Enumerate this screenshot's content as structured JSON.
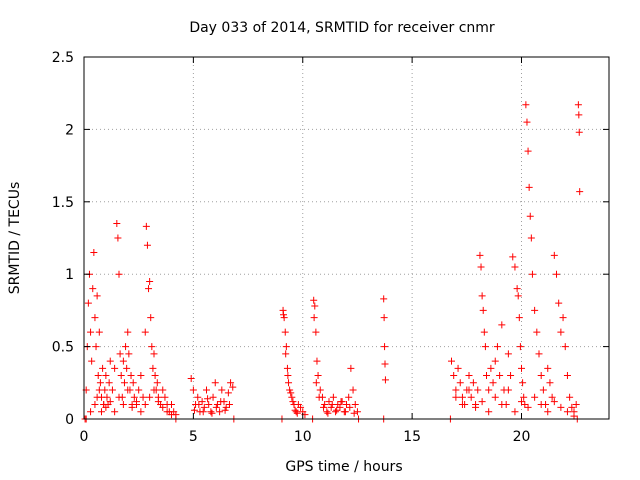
{
  "chart_data": {
    "type": "scatter",
    "title": "Day 033 of 2014, SRMTID for receiver cnmr",
    "xlabel": "GPS time / hours",
    "ylabel": "SRMTID / TECUs",
    "xlim": [
      0,
      24
    ],
    "ylim": [
      0,
      2.5
    ],
    "xticks": [
      0,
      5,
      10,
      15,
      20
    ],
    "yticks": [
      0,
      0.5,
      1,
      1.5,
      2,
      2.5
    ],
    "xtick_labels": [
      "0",
      "5",
      "10",
      "15",
      "20"
    ],
    "ytick_labels": [
      "0",
      "0.5",
      "1",
      "1.5",
      "2",
      "2.5"
    ],
    "grid": true,
    "marker": "+",
    "series": [
      {
        "name": "SRMTID",
        "color": "#ff0000",
        "x": [
          0.1,
          0.15,
          0.2,
          0.25,
          0.3,
          0.35,
          0.4,
          0.45,
          0.5,
          0.55,
          0.6,
          0.65,
          0.7,
          0.75,
          0.8,
          0.85,
          0.9,
          0.95,
          1.0,
          1.05,
          1.1,
          1.15,
          1.2,
          1.3,
          1.4,
          1.5,
          1.55,
          1.6,
          1.65,
          1.7,
          1.75,
          1.8,
          1.85,
          1.9,
          1.95,
          2.0,
          2.05,
          2.1,
          2.15,
          2.2,
          2.25,
          2.3,
          2.4,
          2.5,
          2.6,
          2.7,
          2.8,
          2.85,
          2.9,
          2.95,
          3.0,
          3.05,
          3.1,
          3.15,
          3.2,
          3.25,
          3.3,
          3.35,
          3.4,
          3.5,
          3.6,
          3.7,
          3.8,
          3.9,
          4.0,
          4.1,
          4.2,
          0.3,
          0.5,
          0.6,
          0.7,
          0.8,
          0.9,
          1.0,
          1.2,
          1.4,
          1.6,
          1.8,
          2.0,
          2.2,
          2.4,
          2.6,
          2.8,
          3.0,
          3.2,
          3.4,
          3.6,
          3.8,
          4.0,
          4.9,
          5.0,
          5.1,
          5.2,
          5.3,
          5.4,
          5.5,
          5.6,
          5.7,
          5.8,
          5.9,
          6.0,
          6.1,
          6.2,
          6.3,
          6.4,
          6.5,
          6.6,
          6.7,
          6.8,
          5.05,
          5.25,
          5.45,
          5.65,
          5.85,
          6.05,
          6.25,
          6.45,
          6.65,
          9.1,
          9.15,
          9.2,
          9.25,
          9.3,
          9.35,
          9.4,
          9.5,
          9.6,
          9.7,
          9.8,
          9.9,
          10.0,
          10.1,
          9.12,
          9.22,
          9.32,
          9.45,
          9.55,
          9.65,
          9.75,
          10.5,
          10.55,
          10.6,
          10.65,
          10.7,
          10.8,
          10.9,
          11.0,
          11.1,
          11.2,
          11.3,
          11.4,
          11.5,
          11.6,
          11.7,
          11.8,
          11.9,
          12.0,
          12.1,
          12.2,
          12.3,
          12.4,
          12.5,
          10.52,
          10.62,
          10.75,
          10.95,
          11.15,
          11.35,
          11.55,
          11.75,
          11.95,
          12.15,
          12.35,
          13.7,
          13.72,
          13.74,
          13.76,
          13.78,
          16.8,
          16.9,
          17.0,
          17.1,
          17.2,
          17.3,
          17.4,
          17.5,
          17.6,
          17.7,
          17.8,
          17.9,
          18.0,
          18.1,
          18.15,
          18.2,
          18.25,
          18.3,
          18.35,
          18.4,
          18.5,
          18.6,
          18.7,
          18.8,
          18.9,
          19.0,
          19.1,
          19.2,
          19.3,
          19.4,
          19.5,
          19.6,
          19.7,
          19.8,
          19.85,
          19.9,
          19.95,
          20.0,
          20.05,
          20.1,
          20.15,
          20.2,
          20.25,
          20.3,
          20.35,
          20.4,
          20.45,
          20.5,
          20.6,
          20.7,
          20.8,
          20.9,
          21.0,
          21.1,
          21.2,
          21.3,
          21.4,
          21.5,
          21.6,
          21.7,
          21.8,
          21.9,
          22.0,
          22.1,
          22.2,
          22.3,
          22.4,
          22.5,
          22.6,
          22.62,
          22.64,
          22.66,
          17.0,
          17.3,
          17.6,
          17.9,
          18.2,
          18.5,
          18.8,
          19.1,
          19.4,
          19.7,
          20.0,
          20.3,
          20.6,
          20.9,
          21.2,
          21.5,
          21.8,
          22.1,
          22.4,
          0.05,
          0.1,
          4.2,
          6.85,
          9.05,
          10.45,
          12.55,
          13.7,
          16.75,
          22.55
        ],
        "y": [
          0.2,
          0.5,
          0.8,
          1.0,
          0.6,
          0.4,
          0.9,
          1.15,
          0.7,
          0.5,
          0.85,
          0.3,
          0.6,
          0.25,
          0.15,
          0.35,
          0.1,
          0.2,
          0.3,
          0.15,
          0.1,
          0.25,
          0.4,
          0.2,
          0.35,
          1.35,
          1.25,
          1.0,
          0.45,
          0.3,
          0.15,
          0.4,
          0.25,
          0.5,
          0.35,
          0.6,
          0.45,
          0.2,
          0.3,
          0.1,
          0.25,
          0.15,
          0.1,
          0.2,
          0.3,
          0.15,
          0.6,
          1.33,
          1.2,
          0.9,
          0.95,
          0.7,
          0.5,
          0.35,
          0.45,
          0.3,
          0.2,
          0.25,
          0.15,
          0.1,
          0.2,
          0.15,
          0.1,
          0.05,
          0.1,
          0.05,
          0.03,
          0.05,
          0.1,
          0.15,
          0.2,
          0.05,
          0.1,
          0.08,
          0.12,
          0.05,
          0.15,
          0.1,
          0.2,
          0.08,
          0.12,
          0.05,
          0.1,
          0.15,
          0.2,
          0.12,
          0.08,
          0.05,
          0.03,
          0.28,
          0.2,
          0.1,
          0.15,
          0.05,
          0.12,
          0.08,
          0.2,
          0.1,
          0.05,
          0.15,
          0.25,
          0.1,
          0.05,
          0.2,
          0.12,
          0.08,
          0.18,
          0.25,
          0.22,
          0.06,
          0.1,
          0.05,
          0.14,
          0.04,
          0.08,
          0.12,
          0.06,
          0.1,
          0.75,
          0.7,
          0.6,
          0.5,
          0.35,
          0.25,
          0.2,
          0.15,
          0.1,
          0.05,
          0.1,
          0.08,
          0.05,
          0.03,
          0.72,
          0.45,
          0.3,
          0.18,
          0.12,
          0.06,
          0.04,
          0.82,
          0.78,
          0.6,
          0.4,
          0.3,
          0.2,
          0.15,
          0.1,
          0.05,
          0.12,
          0.08,
          0.15,
          0.05,
          0.1,
          0.08,
          0.12,
          0.05,
          0.1,
          0.15,
          0.35,
          0.2,
          0.1,
          0.05,
          0.7,
          0.25,
          0.15,
          0.08,
          0.04,
          0.1,
          0.06,
          0.12,
          0.05,
          0.08,
          0.04,
          0.83,
          0.7,
          0.5,
          0.38,
          0.27,
          0.4,
          0.3,
          0.2,
          0.35,
          0.25,
          0.15,
          0.1,
          0.2,
          0.3,
          0.15,
          0.25,
          0.1,
          0.2,
          1.13,
          1.05,
          0.85,
          0.75,
          0.6,
          0.5,
          0.3,
          0.2,
          0.35,
          0.25,
          0.4,
          0.5,
          0.3,
          0.65,
          0.2,
          0.1,
          0.45,
          0.3,
          1.12,
          1.05,
          0.9,
          0.85,
          0.7,
          0.5,
          0.35,
          0.25,
          0.15,
          0.1,
          2.17,
          2.05,
          1.85,
          1.6,
          1.4,
          1.25,
          1.0,
          0.75,
          0.6,
          0.45,
          0.3,
          0.2,
          0.1,
          0.35,
          0.25,
          0.15,
          1.13,
          1.0,
          0.8,
          0.6,
          0.7,
          0.5,
          0.3,
          0.15,
          0.08,
          0.05,
          0.1,
          2.17,
          2.1,
          1.98,
          1.57,
          0.15,
          0.1,
          0.2,
          0.08,
          0.12,
          0.05,
          0.15,
          0.1,
          0.2,
          0.05,
          0.12,
          0.08,
          0.15,
          0.1,
          0.05,
          0.12,
          0.08,
          0.05,
          0.02,
          0,
          0,
          0,
          0,
          0,
          0,
          0,
          0,
          0,
          0
        ]
      }
    ]
  }
}
